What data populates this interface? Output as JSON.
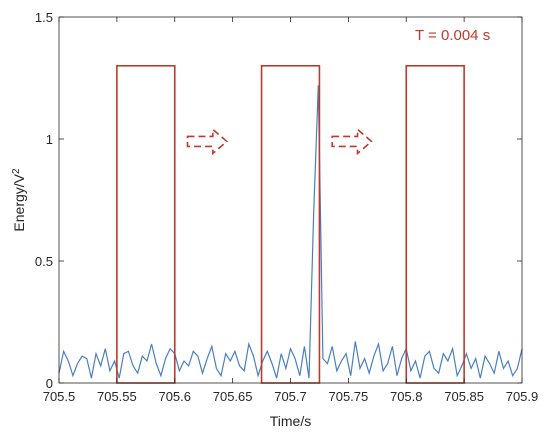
{
  "chart_data": {
    "type": "line",
    "xlabel": "Time/s",
    "ylabel_base": "Energy/V",
    "ylabel_sup": "2",
    "xlim": [
      705.5,
      705.9
    ],
    "ylim": [
      0,
      1.5
    ],
    "x_ticks": [
      705.5,
      705.55,
      705.6,
      705.65,
      705.7,
      705.75,
      705.8,
      705.85,
      705.9
    ],
    "x_tick_labels": [
      "705.5",
      "705.55",
      "705.6",
      "705.65",
      "705.7",
      "705.75",
      "705.8",
      "705.85",
      "705.9"
    ],
    "y_ticks": [
      0,
      0.5,
      1,
      1.5
    ],
    "y_tick_labels": [
      "0",
      "0.5",
      "1",
      "1.5"
    ],
    "grid": false,
    "line_color": "#4a7fc1",
    "highlight_color": "#c0392b",
    "annotation": "T = 0.004 s",
    "windows": [
      {
        "x_start": 705.55,
        "x_end": 705.6,
        "y_top": 1.3
      },
      {
        "x_start": 705.675,
        "x_end": 705.725,
        "y_top": 1.3
      },
      {
        "x_start": 705.8,
        "x_end": 705.85,
        "y_top": 1.3
      }
    ],
    "arrows": [
      {
        "x_start": 705.611,
        "x_end": 705.645,
        "y": 0.99
      },
      {
        "x_start": 705.736,
        "x_end": 705.77,
        "y": 0.99
      }
    ],
    "series": [
      {
        "x": [
          705.5,
          705.504,
          705.508,
          705.512,
          705.516,
          705.52,
          705.524,
          705.528,
          705.532,
          705.536,
          705.54,
          705.544,
          705.548,
          705.552,
          705.556,
          705.56,
          705.564,
          705.568,
          705.572,
          705.576,
          705.58,
          705.584,
          705.588,
          705.592,
          705.596,
          705.6,
          705.604,
          705.608,
          705.612,
          705.616,
          705.62,
          705.624,
          705.628,
          705.632,
          705.636,
          705.64,
          705.644,
          705.648,
          705.652,
          705.656,
          705.66,
          705.664,
          705.668,
          705.672,
          705.676,
          705.68,
          705.684,
          705.688,
          705.692,
          705.696,
          705.7,
          705.704,
          705.708,
          705.712,
          705.716,
          705.72,
          705.724,
          705.728,
          705.732,
          705.736,
          705.74,
          705.744,
          705.748,
          705.752,
          705.756,
          705.76,
          705.764,
          705.768,
          705.772,
          705.776,
          705.78,
          705.784,
          705.788,
          705.792,
          705.796,
          705.8,
          705.804,
          705.808,
          705.812,
          705.816,
          705.82,
          705.824,
          705.828,
          705.832,
          705.836,
          705.84,
          705.844,
          705.848,
          705.852,
          705.856,
          705.86,
          705.864,
          705.868,
          705.872,
          705.876,
          705.88,
          705.884,
          705.888,
          705.892,
          705.896,
          705.9
        ],
        "y": [
          0.04,
          0.13,
          0.09,
          0.03,
          0.08,
          0.11,
          0.1,
          0.02,
          0.12,
          0.07,
          0.14,
          0.05,
          0.09,
          0.02,
          0.12,
          0.13,
          0.07,
          0.04,
          0.11,
          0.09,
          0.16,
          0.08,
          0.03,
          0.1,
          0.14,
          0.12,
          0.05,
          0.09,
          0.07,
          0.13,
          0.11,
          0.04,
          0.1,
          0.15,
          0.06,
          0.03,
          0.12,
          0.09,
          0.13,
          0.07,
          0.05,
          0.16,
          0.11,
          0.03,
          0.09,
          0.13,
          0.08,
          0.02,
          0.12,
          0.06,
          0.14,
          0.1,
          0.03,
          0.15,
          0.02,
          0.7,
          1.22,
          0.1,
          0.08,
          0.15,
          0.05,
          0.09,
          0.12,
          0.03,
          0.17,
          0.06,
          0.1,
          0.04,
          0.11,
          0.16,
          0.05,
          0.08,
          0.15,
          0.03,
          0.1,
          0.14,
          0.05,
          0.09,
          0.02,
          0.11,
          0.13,
          0.06,
          0.04,
          0.12,
          0.09,
          0.14,
          0.03,
          0.07,
          0.12,
          0.06,
          0.1,
          0.02,
          0.11,
          0.08,
          0.04,
          0.13,
          0.06,
          0.09,
          0.03,
          0.06,
          0.14
        ]
      }
    ]
  }
}
